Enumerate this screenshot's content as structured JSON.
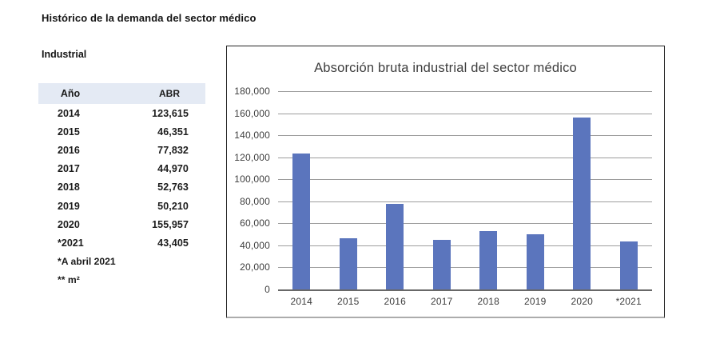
{
  "page": {
    "title": "Histórico de la demanda del sector médico",
    "section_label": "Industrial"
  },
  "table": {
    "columns": [
      "Año",
      "ABR"
    ],
    "rows": [
      {
        "year": "2014",
        "abr": "123,615"
      },
      {
        "year": "2015",
        "abr": "46,351"
      },
      {
        "year": "2016",
        "abr": "77,832"
      },
      {
        "year": "2017",
        "abr": "44,970"
      },
      {
        "year": "2018",
        "abr": "52,763"
      },
      {
        "year": "2019",
        "abr": "50,210"
      },
      {
        "year": "2020",
        "abr": "155,957"
      },
      {
        "year": "*2021",
        "abr": "43,405"
      }
    ],
    "footnotes": [
      "*A abril 2021",
      "** m²"
    ]
  },
  "chart_data": {
    "type": "bar",
    "title": "Absorción bruta industrial del sector médico",
    "categories": [
      "2014",
      "2015",
      "2016",
      "2017",
      "2018",
      "2019",
      "2020",
      "*2021"
    ],
    "values": [
      123615,
      46351,
      77832,
      44970,
      52763,
      50210,
      155957,
      43405
    ],
    "xlabel": "",
    "ylabel": "",
    "ylim": [
      0,
      180000
    ],
    "ytick_step": 20000,
    "ytick_labels": [
      "0",
      "20,000",
      "40,000",
      "60,000",
      "80,000",
      "100,000",
      "120,000",
      "140,000",
      "160,000",
      "180,000"
    ],
    "grid": true,
    "legend": "none",
    "bar_color": "#5B75BD"
  },
  "colors": {
    "table_header_bg": "#E4EAF4",
    "bar": "#5B75BD",
    "gridline": "#9D9D9D",
    "zero_axis": "#686868",
    "chart_border": "#242424",
    "chart_border_bottom": "#ACACAC"
  }
}
